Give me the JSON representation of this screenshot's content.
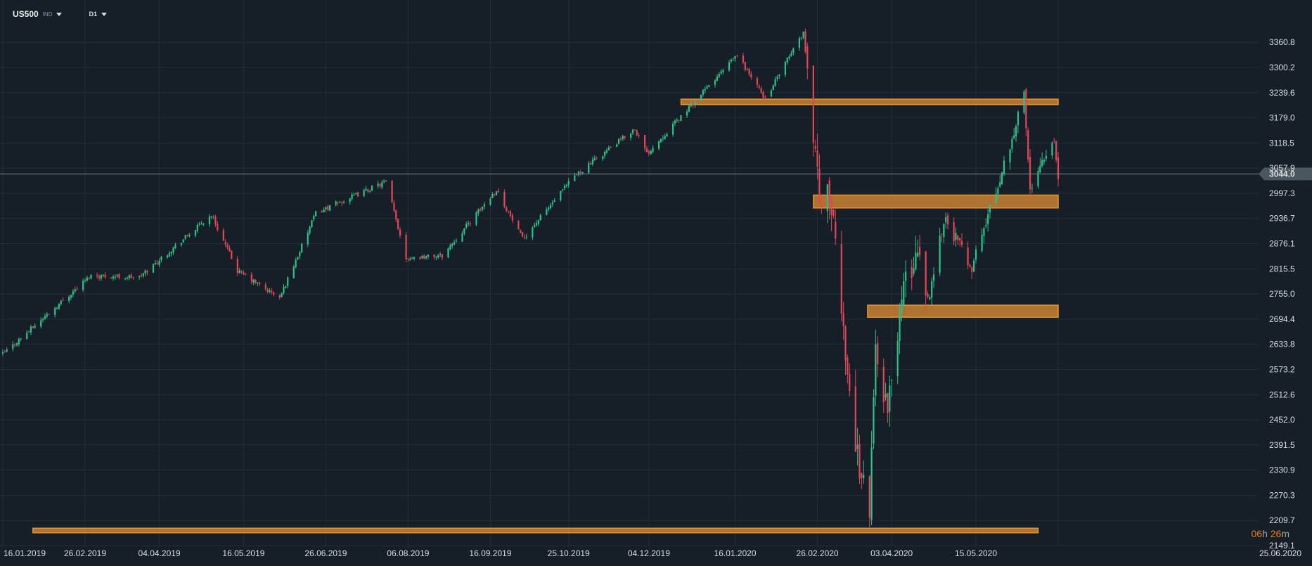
{
  "toolbar": {
    "symbol": "US500",
    "market_tag": "IND",
    "timeframe": "D1"
  },
  "timer": {
    "hours": "06",
    "h": "h",
    "minutes": "26",
    "m": "m"
  },
  "colors": {
    "background": "#161f27",
    "grid": "#222d36",
    "up": "#2ec08b",
    "down": "#e24657",
    "zone_fill": "#c98232",
    "zone_stroke": "#e8942e",
    "price_line": "#7e8b95",
    "price_tag": "#4a5660"
  },
  "chart_data": {
    "type": "candlestick",
    "ylim": [
      2149.1,
      3395.0
    ],
    "y_ticks": [
      "3360.8",
      "3300.2",
      "3239.6",
      "3179.0",
      "3118.5",
      "3057.9",
      "2997.3",
      "2936.7",
      "2876.1",
      "2815.5",
      "2755.0",
      "2694.4",
      "2633.8",
      "2573.2",
      "2512.6",
      "2452.0",
      "2391.5",
      "2330.9",
      "2270.3",
      "2209.7",
      "2149.1"
    ],
    "x_labels": [
      "16.01.2019",
      "26.02.2019",
      "04.04.2019",
      "16.05.2019",
      "26.06.2019",
      "06.08.2019",
      "16.09.2019",
      "25.10.2019",
      "04.12.2019",
      "16.01.2020",
      "26.02.2020",
      "03.04.2020",
      "15.05.2020",
      "25.06.2020"
    ],
    "x_range": [
      "2019-01-16",
      "2020-06-25"
    ],
    "current_price": "3044.0",
    "current_price_value": 3044.0,
    "key_closes": [
      {
        "date": "2019-01-16",
        "value": 2610
      },
      {
        "date": "2019-03-01",
        "value": 2800
      },
      {
        "date": "2019-03-25",
        "value": 2795
      },
      {
        "date": "2019-04-30",
        "value": 2945
      },
      {
        "date": "2019-05-13",
        "value": 2810
      },
      {
        "date": "2019-06-03",
        "value": 2745
      },
      {
        "date": "2019-06-21",
        "value": 2950
      },
      {
        "date": "2019-07-26",
        "value": 3025
      },
      {
        "date": "2019-08-05",
        "value": 2842
      },
      {
        "date": "2019-08-23",
        "value": 2847
      },
      {
        "date": "2019-09-19",
        "value": 3006
      },
      {
        "date": "2019-10-02",
        "value": 2887
      },
      {
        "date": "2019-10-28",
        "value": 3039
      },
      {
        "date": "2019-11-27",
        "value": 3153
      },
      {
        "date": "2019-12-03",
        "value": 3093
      },
      {
        "date": "2020-01-17",
        "value": 3330
      },
      {
        "date": "2020-01-31",
        "value": 3225
      },
      {
        "date": "2020-02-19",
        "value": 3386
      },
      {
        "date": "2020-02-28",
        "value": 2954
      },
      {
        "date": "2020-03-03",
        "value": 3003
      },
      {
        "date": "2020-03-16",
        "value": 2386
      },
      {
        "date": "2020-03-23",
        "value": 2237
      },
      {
        "date": "2020-03-26",
        "value": 2630
      },
      {
        "date": "2020-04-01",
        "value": 2470
      },
      {
        "date": "2020-04-08",
        "value": 2750
      },
      {
        "date": "2020-04-17",
        "value": 2875
      },
      {
        "date": "2020-04-21",
        "value": 2736
      },
      {
        "date": "2020-04-29",
        "value": 2939
      },
      {
        "date": "2020-05-13",
        "value": 2820
      },
      {
        "date": "2020-05-27",
        "value": 3036
      },
      {
        "date": "2020-06-08",
        "value": 3232
      },
      {
        "date": "2020-06-11",
        "value": 3002
      },
      {
        "date": "2020-06-15",
        "value": 3066
      },
      {
        "date": "2020-06-19",
        "value": 3098
      },
      {
        "date": "2020-06-23",
        "value": 3130
      },
      {
        "date": "2020-06-25",
        "value": 3044
      }
    ],
    "zones": [
      {
        "from": "2019-12-20",
        "to": "2020-06-25",
        "low": 3211,
        "high": 3224
      },
      {
        "from": "2020-02-24",
        "to": "2020-06-25",
        "low": 2962,
        "high": 2993
      },
      {
        "from": "2020-03-22",
        "to": "2020-06-25",
        "low": 2699,
        "high": 2728
      },
      {
        "from": "2019-01-31",
        "to": "2020-06-15",
        "low": 2180,
        "high": 2191
      }
    ]
  }
}
